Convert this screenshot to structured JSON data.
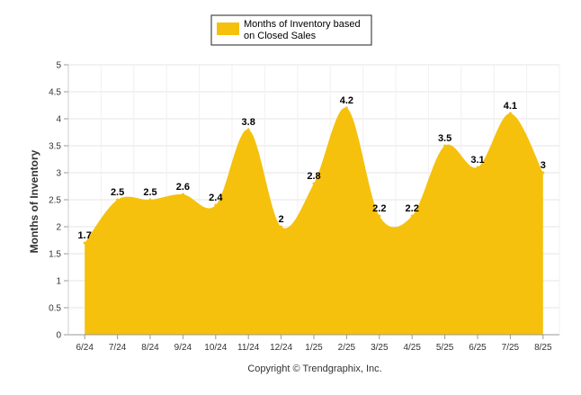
{
  "chart_data": {
    "type": "area",
    "categories": [
      "6/24",
      "7/24",
      "8/24",
      "9/24",
      "10/24",
      "11/24",
      "12/24",
      "1/25",
      "2/25",
      "3/25",
      "4/25",
      "5/25",
      "6/25",
      "7/25",
      "8/25"
    ],
    "series": [
      {
        "name": "Months of Inventory based on Closed Sales",
        "values": [
          1.7,
          2.5,
          2.5,
          2.6,
          2.4,
          3.8,
          2,
          2.8,
          4.2,
          2.2,
          2.2,
          3.5,
          3.1,
          4.1,
          3
        ],
        "color": "#F5C10C"
      }
    ],
    "data_labels": [
      "1.7",
      "2.5",
      "2.5",
      "2.6",
      "2.4",
      "3.8",
      "2",
      "2.8",
      "4.2",
      "2.2",
      "2.2",
      "3.5",
      "3.1",
      "4.1",
      "3"
    ],
    "ylabel": "Months of Inventory",
    "xlabel": "",
    "ylim": [
      0,
      5
    ],
    "yticks": [
      "0",
      "0.5",
      "1",
      "1.5",
      "2",
      "2.5",
      "3",
      "3.5",
      "4",
      "4.5",
      "5"
    ],
    "grid": true,
    "legend_position": "top-center",
    "legend_lines": [
      "Months of Inventory based",
      "on Closed Sales"
    ]
  },
  "footer": "Copyright © Trendgraphix, Inc."
}
